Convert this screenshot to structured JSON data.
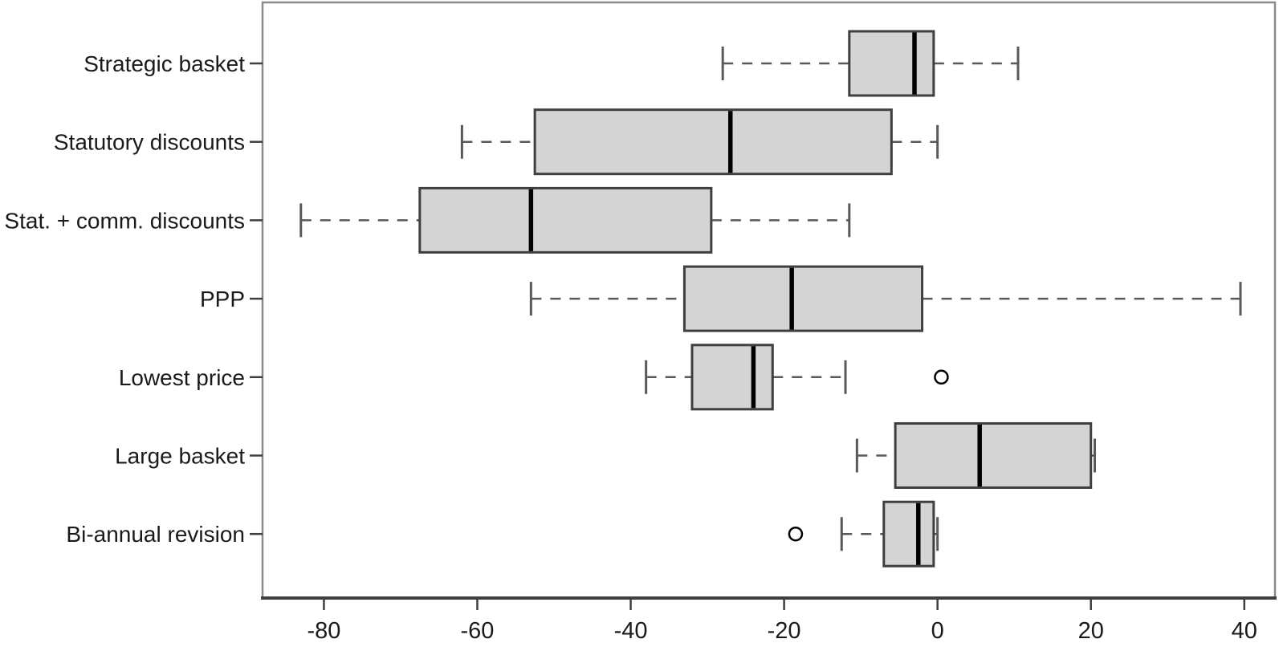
{
  "chart_data": {
    "type": "boxplot",
    "orientation": "horizontal",
    "title": "",
    "xlabel": "",
    "ylabel": "",
    "xlim": [
      -88,
      44
    ],
    "x_ticks": [
      -80,
      -60,
      -40,
      -20,
      0,
      20,
      40
    ],
    "grid": false,
    "legend": null,
    "categories": [
      "Strategic basket",
      "Statutory discounts",
      "Stat. + comm. discounts",
      "PPP",
      "Lowest price",
      "Large basket",
      "Bi-annual revision"
    ],
    "series": [
      {
        "category": "Strategic basket",
        "whisker_low": -28,
        "q1": -11.5,
        "median": -3,
        "q3": -0.5,
        "whisker_high": 10.5,
        "outliers": []
      },
      {
        "category": "Statutory discounts",
        "whisker_low": -62,
        "q1": -52.5,
        "median": -27,
        "q3": -6,
        "whisker_high": 0,
        "outliers": []
      },
      {
        "category": "Stat. + comm. discounts",
        "whisker_low": -83,
        "q1": -67.5,
        "median": -53,
        "q3": -29.5,
        "whisker_high": -11.5,
        "outliers": []
      },
      {
        "category": "PPP",
        "whisker_low": -53,
        "q1": -33,
        "median": -19,
        "q3": -2,
        "whisker_high": 39.5,
        "outliers": []
      },
      {
        "category": "Lowest price",
        "whisker_low": -38,
        "q1": -32,
        "median": -24,
        "q3": -21.5,
        "whisker_high": -12,
        "outliers": [
          0.5
        ]
      },
      {
        "category": "Large basket",
        "whisker_low": -10.5,
        "q1": -5.5,
        "median": 5.5,
        "q3": 20,
        "whisker_high": 20.5,
        "outliers": []
      },
      {
        "category": "Bi-annual revision",
        "whisker_low": -12.5,
        "q1": -7,
        "median": -2.5,
        "q3": -0.5,
        "whisker_high": 0,
        "outliers": [
          -18.5
        ]
      }
    ],
    "style": {
      "background": "#ffffff",
      "box_fill": "#d4d4d4",
      "box_stroke": "#3f3f3f",
      "median_color": "#000000",
      "whisker_color": "#595959",
      "frame_color": "#8a8a8a",
      "axis_color": "#3f3f3f",
      "text_color": "#1a1a1a",
      "outlier_stroke": "#000000",
      "outlier_fill": "#ffffff"
    }
  }
}
